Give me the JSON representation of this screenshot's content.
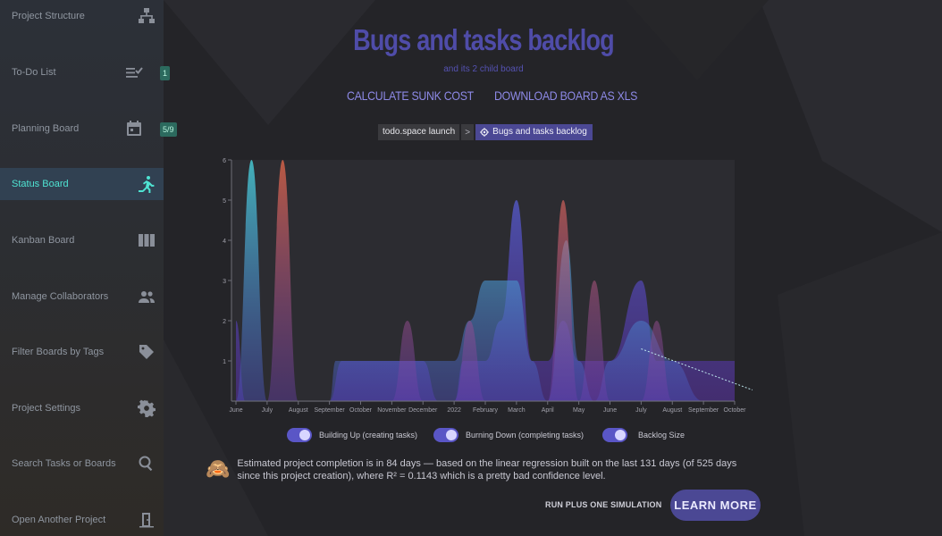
{
  "sidebar": {
    "items": [
      {
        "label": "Project Structure",
        "icon": "sitemap-icon"
      },
      {
        "label": "To-Do List",
        "icon": "checklist-icon",
        "badge": "1"
      },
      {
        "label": "Planning Board",
        "icon": "calendar-icon",
        "badge": "5/9"
      },
      {
        "label": "Status Board",
        "icon": "running-icon",
        "active": true
      },
      {
        "label": "Kanban Board",
        "icon": "columns-icon"
      },
      {
        "label": "Manage Collaborators",
        "icon": "people-icon"
      },
      {
        "label": "Filter Boards by Tags",
        "icon": "tag-icon"
      },
      {
        "label": "Project Settings",
        "icon": "gear-icon"
      },
      {
        "label": "Search Tasks or Boards",
        "icon": "search-icon"
      },
      {
        "label": "Open Another Project",
        "icon": "exit-door-icon"
      }
    ]
  },
  "header": {
    "title": "Bugs and tasks backlog",
    "subtitle": "and its 2 child board",
    "calc_label": "CALCULATE SUNK COST",
    "download_label": "DOWNLOAD BOARD AS XLS"
  },
  "breadcrumb": {
    "root": "todo.space launch",
    "separator": ">",
    "current": "Bugs and tasks backlog"
  },
  "chart_data": {
    "type": "area",
    "x": [
      "June",
      "July",
      "August",
      "September",
      "October",
      "November",
      "December",
      "2022",
      "February",
      "March",
      "April",
      "May",
      "June",
      "July",
      "August",
      "September",
      "October"
    ],
    "yticks": [
      1,
      2,
      3,
      4,
      5,
      6
    ],
    "ylim": [
      0,
      6
    ],
    "series": [
      {
        "name": "Building Up (creating tasks)",
        "color": "#3fc4c8",
        "points": [
          [
            0,
            0
          ],
          [
            0.5,
            6
          ],
          [
            1,
            0
          ],
          [
            3,
            0
          ],
          [
            3.2,
            1
          ],
          [
            5,
            1
          ],
          [
            6,
            1
          ],
          [
            7,
            1
          ],
          [
            7.5,
            2
          ],
          [
            8,
            3
          ],
          [
            9,
            3
          ],
          [
            9.5,
            1
          ],
          [
            10,
            0
          ],
          [
            10.6,
            4
          ],
          [
            11,
            1
          ],
          [
            11.5,
            0
          ],
          [
            12,
            1
          ],
          [
            13,
            2
          ],
          [
            14,
            1
          ],
          [
            15,
            0
          ],
          [
            16,
            0
          ]
        ]
      },
      {
        "name": "Burning Down (completing tasks)",
        "color": "#e0634a",
        "points": [
          [
            0,
            0
          ],
          [
            1,
            0
          ],
          [
            1.5,
            6
          ],
          [
            2,
            0
          ],
          [
            5,
            0
          ],
          [
            5.5,
            2
          ],
          [
            6,
            0
          ],
          [
            7,
            0
          ],
          [
            7.5,
            2
          ],
          [
            8,
            0
          ],
          [
            9,
            0
          ],
          [
            10,
            0
          ],
          [
            10.5,
            5
          ],
          [
            11,
            0
          ],
          [
            11.5,
            3
          ],
          [
            12,
            0
          ],
          [
            13,
            0
          ],
          [
            13.5,
            2
          ],
          [
            14,
            0
          ],
          [
            16,
            0
          ]
        ]
      },
      {
        "name": "Backlog Size",
        "color": "#6a55d6",
        "points": [
          [
            0,
            2
          ],
          [
            0.3,
            0
          ],
          [
            1,
            0
          ],
          [
            3,
            0
          ],
          [
            3.4,
            1
          ],
          [
            6,
            1
          ],
          [
            6.5,
            0
          ],
          [
            7,
            0
          ],
          [
            7.3,
            1
          ],
          [
            8,
            1
          ],
          [
            8.5,
            2
          ],
          [
            9,
            5
          ],
          [
            9.5,
            1
          ],
          [
            10,
            1
          ],
          [
            10.5,
            2
          ],
          [
            11,
            1
          ],
          [
            12,
            1
          ],
          [
            13,
            3
          ],
          [
            13.5,
            1
          ],
          [
            15,
            1
          ],
          [
            15.5,
            1
          ],
          [
            16,
            1
          ]
        ]
      }
    ],
    "regression": {
      "from": [
        13,
        1.3
      ],
      "to": [
        17,
        0.5
      ]
    }
  },
  "estimate": {
    "emoji": "🙈",
    "text": "Estimated project completion is in 84 days — based on the linear regression built on the last 131 days (of 525 days since this project creation), where R² = 0.1143 which is a pretty bad confidence level."
  },
  "actions": {
    "simulation_label": "RUN PLUS ONE SIMULATION",
    "learn_more_label": "LEARN MORE"
  }
}
